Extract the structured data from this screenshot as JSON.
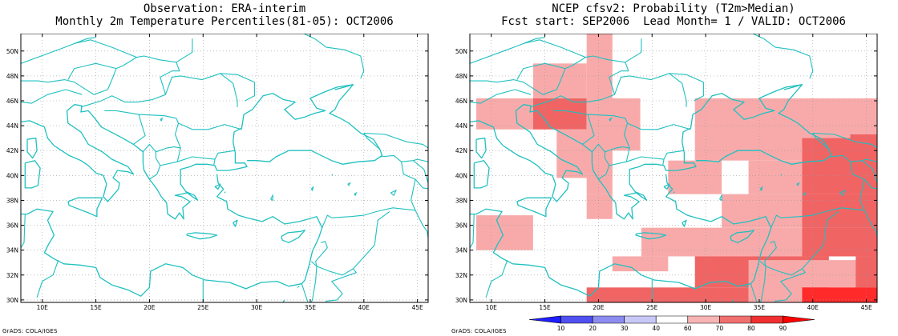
{
  "left_panel": {
    "title_line1": "Observation: ERA-interim",
    "title_line2": "Monthly 2m Temperature Percentiles(81-05): OCT2006",
    "credit": "GrADS: COLA/IGES"
  },
  "right_panel": {
    "title_line1": "NCEP cfsv2: Probability (T2m>Median)",
    "title_line2": "Fcst start: SEP2006  Lead Month= 1 / VALID: OCT2006",
    "credit": "GrADS: COLA/IGES"
  },
  "map": {
    "lon_range": [
      8,
      46
    ],
    "lat_range": [
      29.8,
      51.4
    ],
    "lon_ticks": [
      "10E",
      "15E",
      "20E",
      "25E",
      "30E",
      "35E",
      "40E",
      "45E"
    ],
    "lat_ticks": [
      "30N",
      "32N",
      "34N",
      "36N",
      "38N",
      "40N",
      "42N",
      "44N",
      "46N",
      "48N",
      "50N"
    ],
    "grid": "dotted",
    "coast_color": "#20c0c0"
  },
  "colorbar": {
    "labels": [
      "10",
      "20",
      "30",
      "40",
      "60",
      "70",
      "80",
      "90"
    ],
    "colors": [
      "#1e1eff",
      "#5050f0",
      "#8c8cf0",
      "#c8c8f8",
      "#ffffff",
      "#f8b4b4",
      "#f07070",
      "#f03030",
      "#ff0000"
    ]
  },
  "probability_cells": [
    {
      "lon": [
        8.6,
        13.9
      ],
      "lat": [
        43.7,
        46.2
      ],
      "p": 70
    },
    {
      "lon": [
        13.9,
        18.9
      ],
      "lat": [
        43.7,
        46.2
      ],
      "p": 80
    },
    {
      "lon": [
        13.9,
        18.9
      ],
      "lat": [
        46.2,
        49.0
      ],
      "p": 70
    },
    {
      "lon": [
        18.9,
        21.3
      ],
      "lat": [
        45.5,
        51.4
      ],
      "p": 70
    },
    {
      "lon": [
        16.1,
        21.3
      ],
      "lat": [
        39.8,
        43.7
      ],
      "p": 70
    },
    {
      "lon": [
        18.9,
        21.3
      ],
      "lat": [
        38.5,
        43.7
      ],
      "p": 70
    },
    {
      "lon": [
        18.9,
        23.9
      ],
      "lat": [
        42.0,
        46.2
      ],
      "p": 70
    },
    {
      "lon": [
        18.9,
        21.3
      ],
      "lat": [
        36.5,
        38.5
      ],
      "p": 70
    },
    {
      "lon": [
        8.6,
        13.9
      ],
      "lat": [
        34.0,
        36.8
      ],
      "p": 70
    },
    {
      "lon": [
        29.0,
        46.0
      ],
      "lat": [
        41.2,
        46.2
      ],
      "p": 70
    },
    {
      "lon": [
        26.5,
        31.5
      ],
      "lat": [
        38.5,
        41.2
      ],
      "p": 70
    },
    {
      "lon": [
        34.0,
        46.0
      ],
      "lat": [
        38.5,
        41.2
      ],
      "p": 70
    },
    {
      "lon": [
        39.0,
        46.0
      ],
      "lat": [
        38.5,
        43.0
      ],
      "p": 80
    },
    {
      "lon": [
        43.5,
        46.0
      ],
      "lat": [
        38.5,
        43.3
      ],
      "p": 80
    },
    {
      "lon": [
        31.5,
        46.0
      ],
      "lat": [
        35.8,
        38.5
      ],
      "p": 70
    },
    {
      "lon": [
        39.0,
        46.0
      ],
      "lat": [
        35.8,
        38.5
      ],
      "p": 80
    },
    {
      "lon": [
        24.0,
        46.0
      ],
      "lat": [
        33.5,
        35.8
      ],
      "p": 70
    },
    {
      "lon": [
        39.0,
        46.0
      ],
      "lat": [
        33.5,
        35.8
      ],
      "p": 80
    },
    {
      "lon": [
        21.3,
        26.5
      ],
      "lat": [
        32.3,
        33.5
      ],
      "p": 70
    },
    {
      "lon": [
        29.0,
        41.5
      ],
      "lat": [
        31.0,
        33.5
      ],
      "p": 80
    },
    {
      "lon": [
        34.0,
        46.0
      ],
      "lat": [
        31.0,
        33.2
      ],
      "p": 70
    },
    {
      "lon": [
        44.0,
        46.0
      ],
      "lat": [
        31.0,
        33.5
      ],
      "p": 80
    },
    {
      "lon": [
        18.9,
        34.0
      ],
      "lat": [
        29.8,
        31.0
      ],
      "p": 80
    },
    {
      "lon": [
        34.0,
        39.0
      ],
      "lat": [
        29.8,
        31.0
      ],
      "p": 70
    },
    {
      "lon": [
        39.0,
        46.0
      ],
      "lat": [
        29.8,
        31.0
      ],
      "p": 90
    }
  ]
}
